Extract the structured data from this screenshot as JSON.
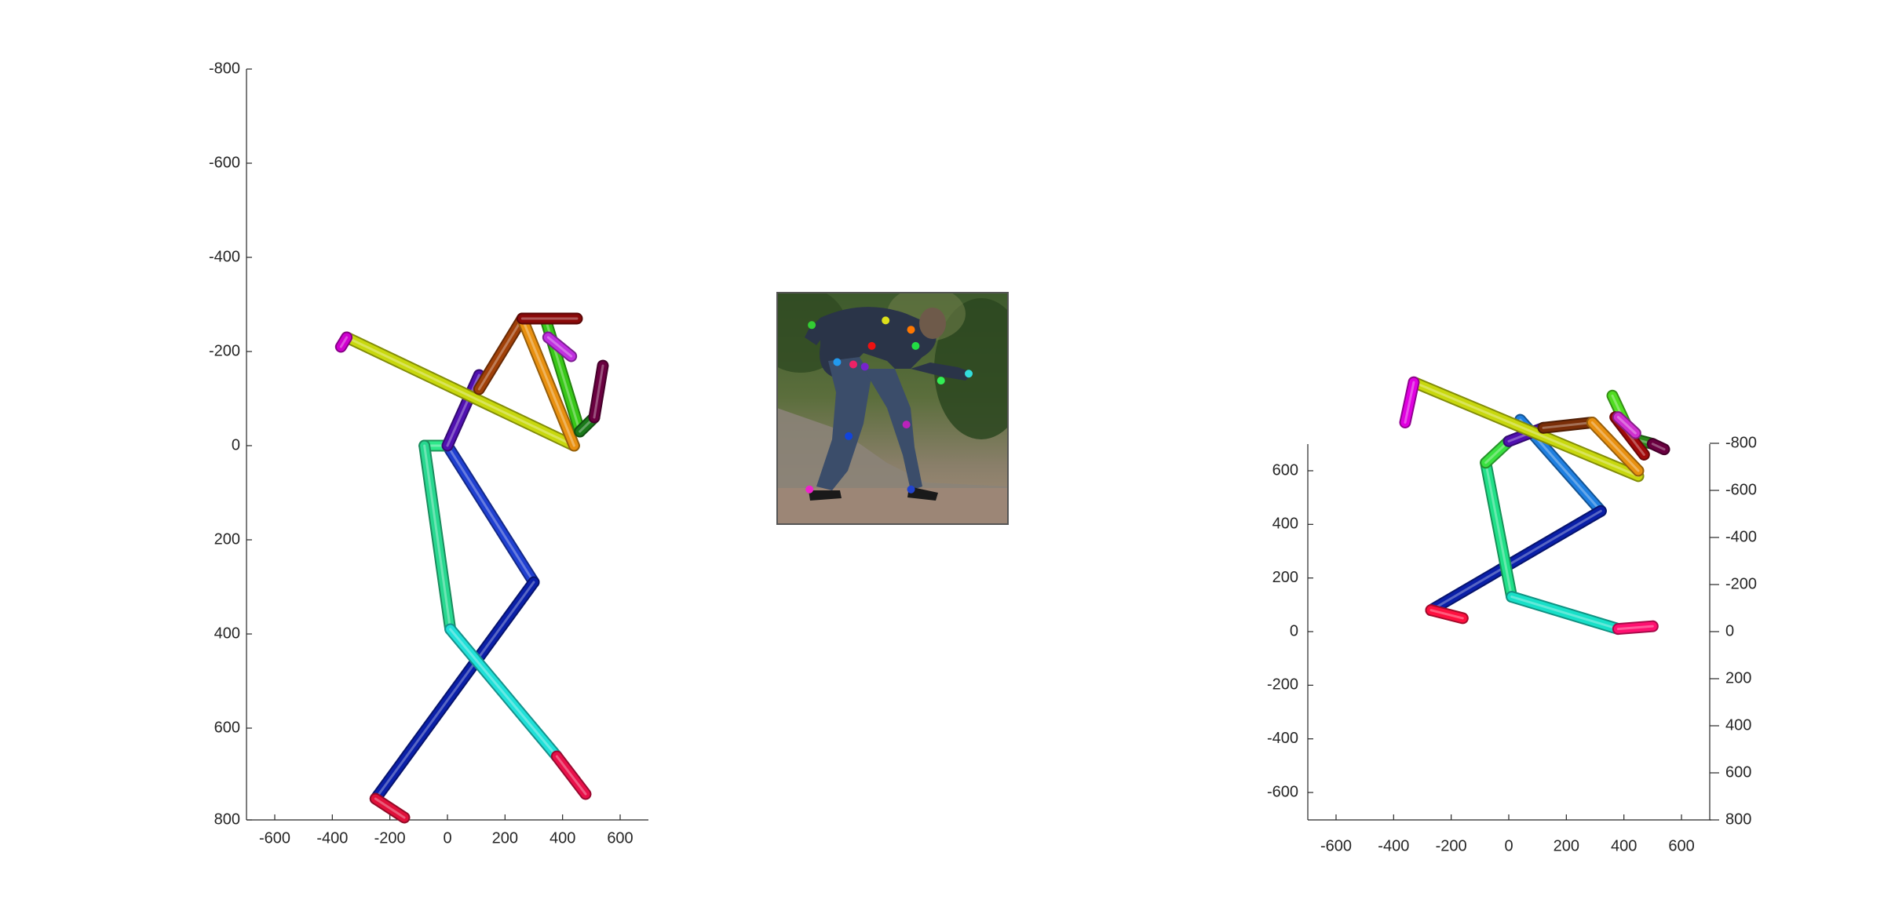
{
  "figure": {
    "background": "#ffffff",
    "axis_color": "#262626"
  },
  "chart_data": [
    {
      "type": "scatter",
      "subtype": "3d-pose-skeleton-front-view",
      "title": "",
      "xlabel": "",
      "ylabel": "",
      "x_ticks": [
        "-600",
        "-400",
        "-200",
        "0",
        "200",
        "400",
        "600"
      ],
      "y_ticks": [
        "-800",
        "-600",
        "-400",
        "-200",
        "0",
        "200",
        "400",
        "600",
        "800"
      ],
      "xlim": [
        -700,
        700
      ],
      "ylim": [
        -800,
        800
      ],
      "y_reversed": true,
      "bones": [
        {
          "color": "#1f3fd0",
          "from": [
            0,
            0
          ],
          "to": [
            300,
            290
          ]
        },
        {
          "color": "#0a1fa8",
          "from": [
            300,
            290
          ],
          "to": [
            -250,
            750
          ]
        },
        {
          "color": "#e0103a",
          "from": [
            -250,
            750
          ],
          "to": [
            -150,
            790
          ]
        },
        {
          "color": "#2ee88a",
          "from": [
            -80,
            0
          ],
          "to": [
            0,
            0
          ]
        },
        {
          "color": "#28d890",
          "from": [
            -80,
            0
          ],
          "to": [
            10,
            390
          ]
        },
        {
          "color": "#20e0d8",
          "from": [
            10,
            390
          ],
          "to": [
            380,
            660
          ]
        },
        {
          "color": "#e8104a",
          "from": [
            380,
            660
          ],
          "to": [
            480,
            740
          ]
        },
        {
          "color": "#5010b0",
          "from": [
            0,
            0
          ],
          "to": [
            110,
            -150
          ]
        },
        {
          "color": "#c8d80e",
          "from": [
            -350,
            -230
          ],
          "to": [
            440,
            0
          ]
        },
        {
          "color": "#d000d0",
          "from": [
            -350,
            -230
          ],
          "to": [
            -370,
            -210
          ]
        },
        {
          "color": "#a04008",
          "from": [
            110,
            -120
          ],
          "to": [
            260,
            -270
          ]
        },
        {
          "color": "#e89010",
          "from": [
            260,
            -270
          ],
          "to": [
            440,
            0
          ]
        },
        {
          "color": "#38c818",
          "from": [
            340,
            -270
          ],
          "to": [
            460,
            -30
          ]
        },
        {
          "color": "#1a7a1a",
          "from": [
            460,
            -30
          ],
          "to": [
            510,
            -60
          ]
        },
        {
          "color": "#6a0040",
          "from": [
            510,
            -60
          ],
          "to": [
            540,
            -170
          ]
        },
        {
          "color": "#8a0a0a",
          "from": [
            260,
            -270
          ],
          "to": [
            450,
            -270
          ]
        },
        {
          "color": "#c030e0",
          "from": [
            350,
            -230
          ],
          "to": [
            430,
            -190
          ]
        }
      ]
    },
    {
      "type": "image",
      "subtype": "input-photo-with-2d-keypoints",
      "keypoints": [
        {
          "color": "#33cc33",
          "x": 0.15,
          "y": 0.14
        },
        {
          "color": "#dde01a",
          "x": 0.47,
          "y": 0.12
        },
        {
          "color": "#ff7700",
          "x": 0.58,
          "y": 0.16
        },
        {
          "color": "#ee1111",
          "x": 0.41,
          "y": 0.23
        },
        {
          "color": "#22dd44",
          "x": 0.6,
          "y": 0.23
        },
        {
          "color": "#2299ee",
          "x": 0.26,
          "y": 0.3
        },
        {
          "color": "#ee2266",
          "x": 0.33,
          "y": 0.31
        },
        {
          "color": "#7722cc",
          "x": 0.38,
          "y": 0.32
        },
        {
          "color": "#33ee55",
          "x": 0.71,
          "y": 0.38
        },
        {
          "color": "#33dddd",
          "x": 0.83,
          "y": 0.35
        },
        {
          "color": "#1144dd",
          "x": 0.31,
          "y": 0.62
        },
        {
          "color": "#bb22bb",
          "x": 0.56,
          "y": 0.57
        },
        {
          "color": "#ee22cc",
          "x": 0.14,
          "y": 0.85
        },
        {
          "color": "#2244cc",
          "x": 0.58,
          "y": 0.85
        }
      ]
    },
    {
      "type": "scatter",
      "subtype": "3d-pose-skeleton-oblique-view",
      "title": "",
      "xlabel": "",
      "ylabel": "",
      "x_ticks": [
        "-600",
        "-400",
        "-200",
        "0",
        "200",
        "400",
        "600"
      ],
      "y_left_ticks": [
        "600",
        "400",
        "200",
        "0",
        "-200",
        "-400",
        "-600"
      ],
      "z_right_ticks": [
        "-800",
        "-600",
        "-400",
        "-200",
        "0",
        "200",
        "400",
        "600",
        "800"
      ],
      "xlim": [
        -700,
        700
      ],
      "ylim": [
        -700,
        700
      ],
      "bones": [
        {
          "color": "#1f7fe0",
          "from": [
            40,
            790
          ],
          "to": [
            320,
            450
          ]
        },
        {
          "color": "#0a1fa8",
          "from": [
            320,
            450
          ],
          "to": [
            -270,
            80
          ]
        },
        {
          "color": "#ff1040",
          "from": [
            -270,
            80
          ],
          "to": [
            -160,
            50
          ]
        },
        {
          "color": "#20e088",
          "from": [
            -80,
            630
          ],
          "to": [
            10,
            130
          ]
        },
        {
          "color": "#18e0c8",
          "from": [
            10,
            130
          ],
          "to": [
            380,
            10
          ]
        },
        {
          "color": "#ff1070",
          "from": [
            380,
            10
          ],
          "to": [
            500,
            20
          ]
        },
        {
          "color": "#3ae040",
          "from": [
            -80,
            630
          ],
          "to": [
            0,
            710
          ]
        },
        {
          "color": "#5010b0",
          "from": [
            0,
            710
          ],
          "to": [
            120,
            760
          ]
        },
        {
          "color": "#c8d80e",
          "from": [
            -330,
            930
          ],
          "to": [
            450,
            580
          ]
        },
        {
          "color": "#e000e0",
          "from": [
            -330,
            930
          ],
          "to": [
            -360,
            780
          ]
        },
        {
          "color": "#7a2e08",
          "from": [
            120,
            760
          ],
          "to": [
            290,
            780
          ]
        },
        {
          "color": "#e89010",
          "from": [
            290,
            780
          ],
          "to": [
            450,
            600
          ]
        },
        {
          "color": "#50dd20",
          "from": [
            360,
            880
          ],
          "to": [
            430,
            720
          ]
        },
        {
          "color": "#2a8a1a",
          "from": [
            430,
            720
          ],
          "to": [
            500,
            700
          ]
        },
        {
          "color": "#6a0040",
          "from": [
            500,
            700
          ],
          "to": [
            540,
            680
          ]
        },
        {
          "color": "#a00a0a",
          "from": [
            370,
            800
          ],
          "to": [
            470,
            660
          ]
        },
        {
          "color": "#d030d0",
          "from": [
            380,
            800
          ],
          "to": [
            440,
            740
          ]
        }
      ]
    }
  ]
}
